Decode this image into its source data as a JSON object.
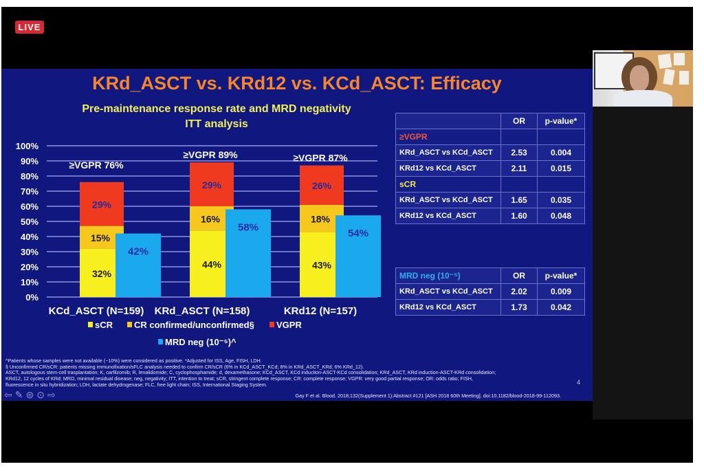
{
  "stream": {
    "live_badge": "LIVE"
  },
  "slide": {
    "title": "KRd_ASCT vs. KRd12 vs. KCd_ASCT: Efficacy",
    "subtitle_line1": "Pre-maintenance response rate and MRD negativity",
    "subtitle_line2": "ITT analysis",
    "page_number": "4",
    "footnotes": [
      "^Patients whose samples were not available (~10%) were considered as positive. *Adjusted for ISS, Age, FISH, LDH.",
      "§ Unconfirmed CR/sCR: patients missing immunofixation/sFLC analysis needed to confirm CR/sCR (6% in KCd_ASCT_KCd; 8% in KRd_ASCT_KRd; 6% KRd_12).",
      "ASCT, autologous stem-cell trasplantation; K, carfilzomib; R, lenalidomide; C, cyclophosphamide; d, dexamethasone; KCd_ASCT, KCd induction-ASCT-KCd consolidation; KRd_ASCT, KRd induction-ASCT-KRd consolidation;",
      "KRd12, 12 cycles of KRd; MRD, minimal residual disease; neg, negativity; ITT, intention to treat; sCR, stringent complete response; CR: complete response; VGPR: very good partial response; OR: odds ratio; FISH,",
      "fluorescence in situ hybridization; LDH, lactate dehydrogenase; FLC, free light chain; ISS, International Staging System."
    ],
    "citation": "Gay F et al. Blood. 2018;132(Supplement 1):Abstract #121 [ASH 2018 60th Meeting]. doi:10.1182/blood-2018-99-112093.",
    "nav_icons": [
      "prev-arrow-icon",
      "pen-icon",
      "slides-icon",
      "more-icon",
      "next-arrow-icon"
    ]
  },
  "colors": {
    "sCR": "#f7ef1e",
    "CR": "#f6c71c",
    "VGPR": "#f03a20",
    "MRD": "#1ba9ee",
    "background": "#10177f",
    "title": "#f7862b",
    "subtitle": "#f1ef5a"
  },
  "chart_data": {
    "type": "bar",
    "subtype": "stacked-plus-adjacent",
    "title": "Pre-maintenance response rate and MRD negativity — ITT analysis",
    "xlabel": "",
    "ylabel": "",
    "ylim": [
      0,
      100
    ],
    "yticks": [
      "0%",
      "10%",
      "20%",
      "30%",
      "40%",
      "50%",
      "60%",
      "70%",
      "80%",
      "90%",
      "100%"
    ],
    "grid": true,
    "categories": [
      "KCd_ASCT (N=159)",
      "KRd_ASCT (N=158)",
      "KRd12 (N=157)"
    ],
    "stacked_series": [
      {
        "name": "sCR",
        "key": "sCR",
        "values": [
          32,
          44,
          43
        ]
      },
      {
        "name": "CR confirmed/unconfirmed§",
        "key": "CR",
        "values": [
          15,
          16,
          18
        ]
      },
      {
        "name": "VGPR",
        "key": "VGPR",
        "values": [
          29,
          29,
          26
        ]
      }
    ],
    "adjacent_series": {
      "name": "MRD neg (10⁻⁵)^",
      "key": "MRD",
      "values": [
        42,
        58,
        54
      ]
    },
    "totals_labels": [
      "≥VGPR 76%",
      "≥VGPR 89%",
      "≥VGPR 87%"
    ],
    "legend": [
      {
        "label": "sCR",
        "key": "sCR"
      },
      {
        "label": "CR confirmed/unconfirmed§",
        "key": "CR"
      },
      {
        "label": "VGPR",
        "key": "VGPR"
      },
      {
        "label": "MRD neg (10⁻⁵)^",
        "key": "MRD"
      }
    ],
    "legend_position": "bottom"
  },
  "response_table": {
    "headers": [
      "",
      "OR",
      "p-value*"
    ],
    "sections": [
      {
        "title": "≥VGPR",
        "rows": [
          {
            "comparison": "KRd_ASCT vs KCd_ASCT",
            "or": "2.53",
            "p": "0.004"
          },
          {
            "comparison": "KRd12 vs KCd_ASCT",
            "or": "2.11",
            "p": "0.015"
          }
        ]
      },
      {
        "title": "sCR",
        "rows": [
          {
            "comparison": "KRd_ASCT vs KCd_ASCT",
            "or": "1.65",
            "p": "0.035"
          },
          {
            "comparison": "KRd12 vs KCd_ASCT",
            "or": "1.60",
            "p": "0.048"
          }
        ]
      }
    ]
  },
  "mrd_table": {
    "headers": [
      "MRD neg (10⁻⁵)",
      "OR",
      "p-value*"
    ],
    "rows": [
      {
        "comparison": "KRd_ASCT vs KCd_ASCT",
        "or": "2.02",
        "p": "0.009"
      },
      {
        "comparison": "KRd12 vs KCd_ASCT",
        "or": "1.73",
        "p": "0.042"
      }
    ]
  }
}
